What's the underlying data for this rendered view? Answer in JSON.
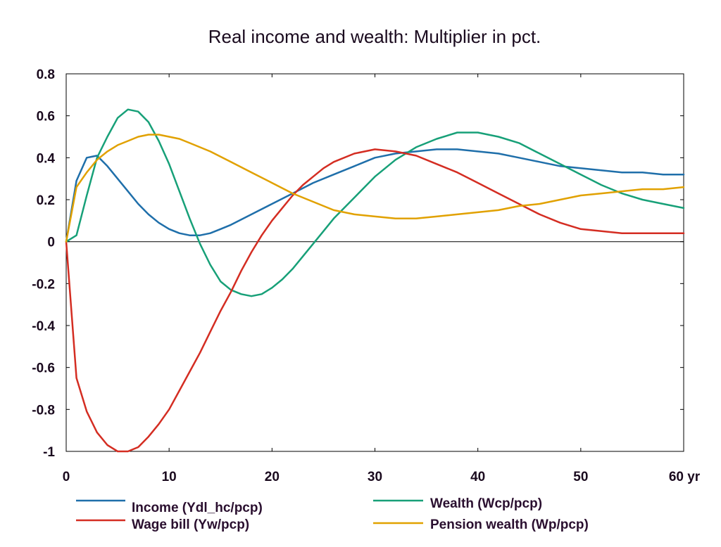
{
  "chart_data": {
    "type": "line",
    "title": "Real income and wealth: Multiplier in pct.",
    "xlabel": "",
    "ylabel": "",
    "xlim": [
      0,
      60
    ],
    "ylim": [
      -1,
      0.8
    ],
    "x_ticks": [
      {
        "value": 0,
        "label": "0"
      },
      {
        "value": 10,
        "label": "10"
      },
      {
        "value": 20,
        "label": "20"
      },
      {
        "value": 30,
        "label": "30"
      },
      {
        "value": 40,
        "label": "40"
      },
      {
        "value": 50,
        "label": "50"
      },
      {
        "value": 60,
        "label": "60 yr"
      }
    ],
    "y_ticks": [
      {
        "value": 0.8,
        "label": "0.8"
      },
      {
        "value": 0.6,
        "label": "0.6"
      },
      {
        "value": 0.4,
        "label": "0.4"
      },
      {
        "value": 0.2,
        "label": "0.2"
      },
      {
        "value": 0,
        "label": "0"
      },
      {
        "value": -0.2,
        "label": "-0.2"
      },
      {
        "value": -0.4,
        "label": "-0.4"
      },
      {
        "value": -0.6,
        "label": "-0.6"
      },
      {
        "value": -0.8,
        "label": "-0.8"
      },
      {
        "value": -1,
        "label": "-1"
      }
    ],
    "grid": false,
    "legend_position": "bottom",
    "series": [
      {
        "name": "Income (Ydl_hc/pcp)",
        "color": "#1f6faa",
        "x": [
          0,
          1,
          2,
          3,
          4,
          5,
          6,
          7,
          8,
          9,
          10,
          11,
          12,
          13,
          14,
          15,
          16,
          18,
          20,
          22,
          24,
          26,
          28,
          30,
          32,
          34,
          36,
          38,
          40,
          42,
          44,
          46,
          48,
          50,
          52,
          54,
          56,
          58,
          60
        ],
        "y": [
          0,
          0.29,
          0.4,
          0.41,
          0.36,
          0.3,
          0.24,
          0.18,
          0.13,
          0.09,
          0.06,
          0.04,
          0.03,
          0.03,
          0.04,
          0.06,
          0.08,
          0.13,
          0.18,
          0.23,
          0.28,
          0.32,
          0.36,
          0.4,
          0.42,
          0.43,
          0.44,
          0.44,
          0.43,
          0.42,
          0.4,
          0.38,
          0.36,
          0.35,
          0.34,
          0.33,
          0.33,
          0.32,
          0.32
        ]
      },
      {
        "name": "Wealth (Wcp/pcp)",
        "color": "#17a078",
        "x": [
          0,
          1,
          2,
          3,
          4,
          5,
          6,
          7,
          8,
          9,
          10,
          11,
          12,
          13,
          14,
          15,
          16,
          17,
          18,
          19,
          20,
          21,
          22,
          23,
          24,
          25,
          26,
          28,
          30,
          32,
          34,
          36,
          38,
          40,
          42,
          44,
          46,
          48,
          50,
          52,
          54,
          56,
          58,
          60
        ],
        "y": [
          0,
          0.03,
          0.22,
          0.4,
          0.5,
          0.59,
          0.63,
          0.62,
          0.57,
          0.48,
          0.37,
          0.24,
          0.11,
          -0.01,
          -0.11,
          -0.19,
          -0.23,
          -0.25,
          -0.26,
          -0.25,
          -0.22,
          -0.18,
          -0.13,
          -0.07,
          -0.01,
          0.05,
          0.11,
          0.21,
          0.31,
          0.39,
          0.45,
          0.49,
          0.52,
          0.52,
          0.5,
          0.47,
          0.42,
          0.37,
          0.32,
          0.27,
          0.23,
          0.2,
          0.18,
          0.16
        ]
      },
      {
        "name": "Wage bill (Yw/pcp)",
        "color": "#d42d22",
        "x": [
          0,
          1,
          2,
          3,
          4,
          5,
          6,
          7,
          8,
          9,
          10,
          11,
          12,
          13,
          14,
          15,
          16,
          17,
          18,
          19,
          20,
          21,
          22,
          23,
          24,
          25,
          26,
          28,
          30,
          32,
          34,
          36,
          38,
          40,
          42,
          44,
          46,
          48,
          50,
          52,
          54,
          56,
          58,
          60
        ],
        "y": [
          0,
          -0.65,
          -0.81,
          -0.91,
          -0.97,
          -1.0,
          -1.0,
          -0.98,
          -0.93,
          -0.87,
          -0.8,
          -0.71,
          -0.62,
          -0.53,
          -0.43,
          -0.33,
          -0.24,
          -0.14,
          -0.05,
          0.03,
          0.1,
          0.16,
          0.22,
          0.27,
          0.31,
          0.35,
          0.38,
          0.42,
          0.44,
          0.43,
          0.41,
          0.37,
          0.33,
          0.28,
          0.23,
          0.18,
          0.13,
          0.09,
          0.06,
          0.05,
          0.04,
          0.04,
          0.04,
          0.04
        ]
      },
      {
        "name": "Pension wealth (Wp/pcp)",
        "color": "#e1a100",
        "x": [
          0,
          1,
          2,
          3,
          4,
          5,
          6,
          7,
          8,
          9,
          10,
          11,
          12,
          14,
          16,
          18,
          20,
          22,
          24,
          26,
          28,
          30,
          32,
          34,
          36,
          38,
          40,
          42,
          44,
          46,
          48,
          50,
          52,
          54,
          56,
          58,
          60
        ],
        "y": [
          0,
          0.26,
          0.33,
          0.39,
          0.43,
          0.46,
          0.48,
          0.5,
          0.51,
          0.51,
          0.5,
          0.49,
          0.47,
          0.43,
          0.38,
          0.33,
          0.28,
          0.23,
          0.19,
          0.15,
          0.13,
          0.12,
          0.11,
          0.11,
          0.12,
          0.13,
          0.14,
          0.15,
          0.17,
          0.18,
          0.2,
          0.22,
          0.23,
          0.24,
          0.25,
          0.25,
          0.26
        ]
      }
    ]
  }
}
